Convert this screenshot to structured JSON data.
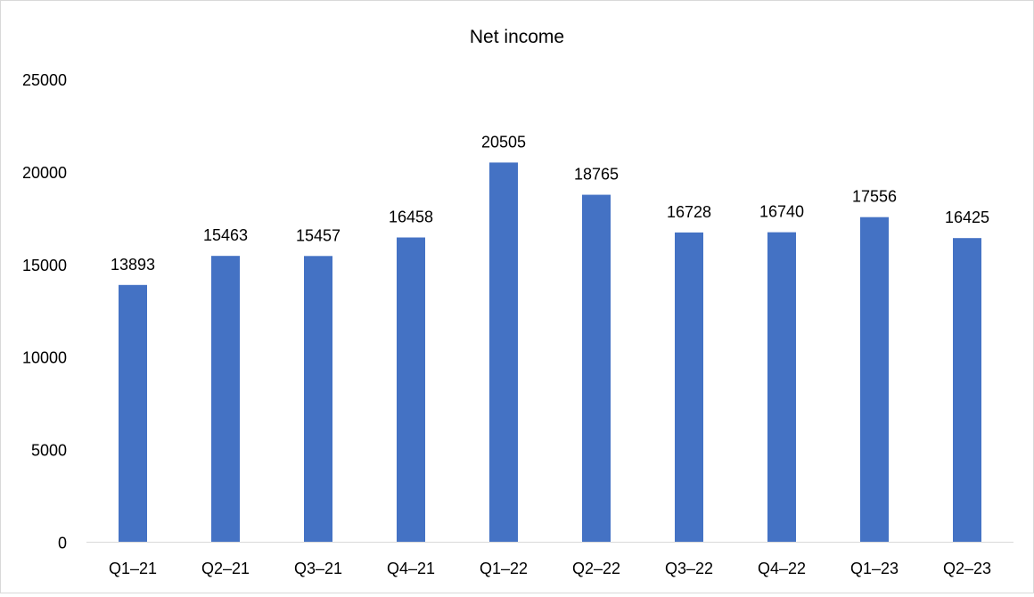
{
  "chart_data": {
    "type": "bar",
    "title": "Net income",
    "xlabel": "",
    "ylabel": "",
    "categories": [
      "Q1–21",
      "Q2–21",
      "Q3–21",
      "Q4–21",
      "Q1–22",
      "Q2–22",
      "Q3–22",
      "Q4–22",
      "Q1–23",
      "Q2–23"
    ],
    "values": [
      13893,
      15463,
      15457,
      16458,
      20505,
      18765,
      16728,
      16740,
      17556,
      16425
    ],
    "ylim": [
      0,
      25000
    ],
    "yticks": [
      0,
      5000,
      10000,
      15000,
      20000,
      25000
    ],
    "grid": false,
    "legend": "none",
    "data_labels": true,
    "bar_color": "#4472C4",
    "axis_color": "#d9d9d9"
  }
}
